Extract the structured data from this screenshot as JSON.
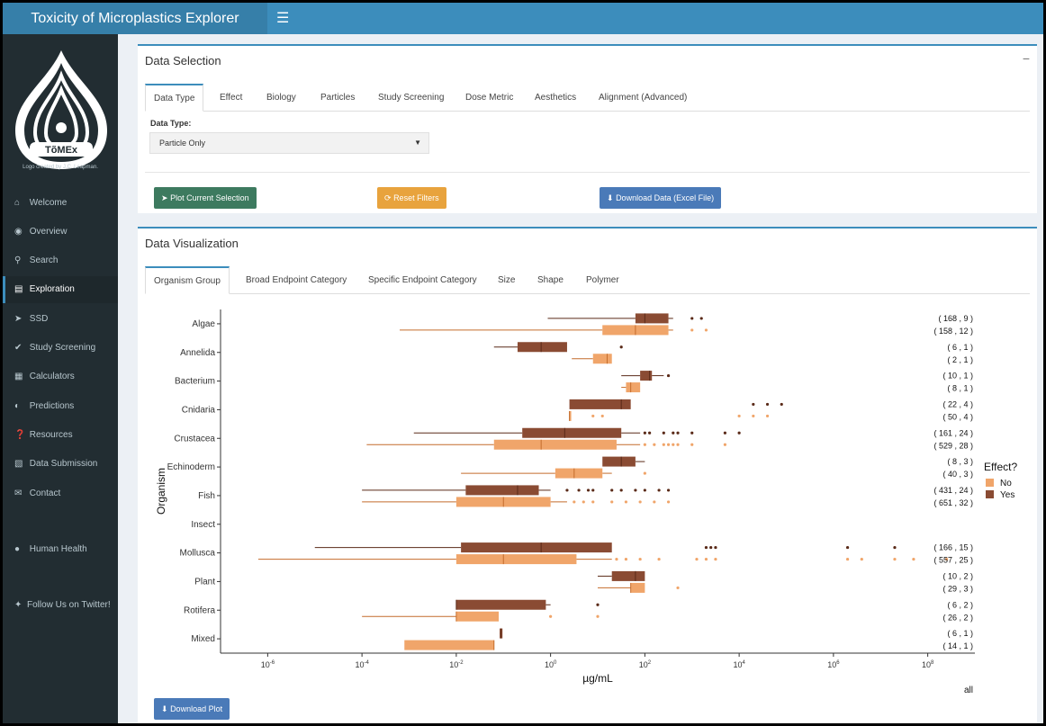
{
  "app": {
    "title": "Toxicity of Microplastics Explorer",
    "menu_icon": "hamburger-icon"
  },
  "sidebar": {
    "logo_text": "TõMEx",
    "logo_credit": "Logo created by J.C. Leapman.",
    "items": [
      {
        "label": "Welcome",
        "icon": "home-icon"
      },
      {
        "label": "Overview",
        "icon": "globe-icon"
      },
      {
        "label": "Search",
        "icon": "search-icon"
      },
      {
        "label": "Exploration",
        "icon": "chart-icon",
        "active": true
      },
      {
        "label": "SSD",
        "icon": "fish-icon"
      },
      {
        "label": "Study Screening",
        "icon": "check-circle-icon"
      },
      {
        "label": "Calculators",
        "icon": "calculator-icon"
      },
      {
        "label": "Predictions",
        "icon": "brain-icon"
      },
      {
        "label": "Resources",
        "icon": "question-icon"
      },
      {
        "label": "Data Submission",
        "icon": "file-icon"
      },
      {
        "label": "Contact",
        "icon": "envelope-icon"
      },
      {
        "label": "Human Health",
        "icon": "user-icon"
      },
      {
        "label": "Follow Us on Twitter!",
        "icon": "twitter-icon"
      }
    ]
  },
  "data_selection": {
    "title": "Data Selection",
    "collapse_label": "−",
    "tabs": [
      "Data Type",
      "Effect",
      "Biology",
      "Particles",
      "Study Screening",
      "Dose Metric",
      "Aesthetics",
      "Alignment (Advanced)"
    ],
    "data_type_label": "Data Type:",
    "data_type_value": "Particle Only",
    "buttons": {
      "plot": "Plot Current Selection",
      "reset": "Reset Filters",
      "download": "Download Data (Excel File)"
    },
    "colors": {
      "plot": "#3d7a5f",
      "reset": "#e8a33d",
      "download": "#4a7ab8"
    }
  },
  "data_visualization": {
    "title": "Data Visualization",
    "tabs": [
      "Organism Group",
      "Broad Endpoint Category",
      "Specific Endpoint Category",
      "Size",
      "Shape",
      "Polymer"
    ],
    "download_plot_label": "Download Plot",
    "facet_label": "all"
  },
  "chart_data": {
    "type": "boxplot",
    "orientation": "horizontal",
    "xlabel": "µg/mL",
    "ylabel": "Organism",
    "xscale": "log10",
    "xlim": [
      1e-07,
      1000000000.0
    ],
    "x_ticks": [
      "10-6",
      "10-4",
      "10-2",
      "100",
      "102",
      "104",
      "106",
      "108"
    ],
    "legend": {
      "title": "Effect?",
      "placement": "right",
      "entries": [
        {
          "name": "No",
          "color": "#f0a56a"
        },
        {
          "name": "Yes",
          "color": "#8a4b33"
        }
      ]
    },
    "colors": {
      "No": "#f0a56a",
      "Yes": "#8a4b33",
      "No_dark": "#c46c2c",
      "Yes_dark": "#5a2a18"
    },
    "categories": [
      "Algae",
      "Annelida",
      "Bacterium",
      "Cnidaria",
      "Crustacea",
      "Echinoderm",
      "Fish",
      "Insect",
      "Mollusca",
      "Plant",
      "Rotifera",
      "Mixed"
    ],
    "groups": [
      {
        "organism": "Algae",
        "yes": {
          "wmin": -0.06,
          "q1": 1.8,
          "med": 2.0,
          "q3": 2.5,
          "wmax": 2.6,
          "out": [
            3.0,
            3.2
          ],
          "label": "( 168 , 9 )"
        },
        "no": {
          "wmin": -3.2,
          "q1": 1.1,
          "med": 1.8,
          "q3": 2.5,
          "wmax": 2.6,
          "out": [
            3.0,
            3.3
          ],
          "label": "( 158 , 12 )"
        }
      },
      {
        "organism": "Annelida",
        "yes": {
          "wmin": -1.2,
          "q1": -0.7,
          "med": -0.2,
          "q3": 0.35,
          "wmax": 0.35,
          "out": [
            1.5
          ],
          "label": "( 6 , 1 )"
        },
        "no": {
          "wmin": 0.45,
          "q1": 0.9,
          "med": 1.2,
          "q3": 1.3,
          "wmax": 1.3,
          "out": [],
          "label": "( 2 , 1 )"
        }
      },
      {
        "organism": "Bacterium",
        "yes": {
          "wmin": 1.5,
          "q1": 1.9,
          "med": 2.1,
          "q3": 2.15,
          "wmax": 2.4,
          "out": [
            2.5
          ],
          "label": "( 10 , 1 )"
        },
        "no": {
          "wmin": 1.5,
          "q1": 1.6,
          "med": 1.7,
          "q3": 1.9,
          "wmax": 1.9,
          "out": [],
          "label": "( 8 , 1 )"
        }
      },
      {
        "organism": "Cnidaria",
        "yes": {
          "wmin": 0.4,
          "q1": 0.4,
          "med": 1.5,
          "q3": 1.7,
          "wmax": 1.7,
          "out": [
            4.3,
            4.6,
            4.9
          ],
          "label": "( 22 , 4 )"
        },
        "no": {
          "wmin": 0.4,
          "q1": 0.4,
          "med": 0.4,
          "q3": 0.4,
          "wmax": 0.4,
          "out": [
            0.9,
            1.1,
            4.0,
            4.3,
            4.6
          ],
          "label": "( 50 , 4 )"
        }
      },
      {
        "organism": "Crustacea",
        "yes": {
          "wmin": -2.9,
          "q1": -0.6,
          "med": 0.3,
          "q3": 1.5,
          "wmax": 1.9,
          "out": [
            2.0,
            2.1,
            2.4,
            2.6,
            2.7,
            3.0,
            3.7,
            4.0
          ],
          "label": "( 161 , 24 )"
        },
        "no": {
          "wmin": -3.9,
          "q1": -1.2,
          "med": -0.2,
          "q3": 1.4,
          "wmax": 1.9,
          "out": [
            2.0,
            2.2,
            2.4,
            2.5,
            2.6,
            2.7,
            3.0,
            3.7
          ],
          "label": "( 529 , 28 )"
        }
      },
      {
        "organism": "Echinoderm",
        "yes": {
          "wmin": 1.1,
          "q1": 1.1,
          "med": 1.5,
          "q3": 1.8,
          "wmax": 2.0,
          "out": [],
          "label": "( 8 , 3 )"
        },
        "no": {
          "wmin": -1.9,
          "q1": 0.1,
          "med": 0.5,
          "q3": 1.1,
          "wmax": 1.3,
          "out": [
            2.0
          ],
          "label": "( 40 , 3 )"
        }
      },
      {
        "organism": "Fish",
        "yes": {
          "wmin": -4.0,
          "q1": -1.8,
          "med": -0.7,
          "q3": -0.25,
          "wmax": 0.0,
          "out": [
            0.35,
            0.6,
            0.8,
            0.9,
            1.3,
            1.5,
            1.8,
            2.0,
            2.3,
            2.5
          ],
          "label": "( 431 , 24 )"
        },
        "no": {
          "wmin": -4.0,
          "q1": -2.0,
          "med": -1.0,
          "q3": 0.0,
          "wmax": 0.35,
          "out": [
            0.5,
            0.7,
            0.9,
            1.3,
            1.6,
            1.9,
            2.2,
            2.5
          ],
          "label": "( 651 , 32 )"
        }
      },
      {
        "organism": "Insect",
        "yes": null,
        "no": null
      },
      {
        "organism": "Mollusca",
        "yes": {
          "wmin": -5.0,
          "q1": -1.9,
          "med": -0.2,
          "q3": 1.3,
          "wmax": 1.3,
          "out": [
            3.3,
            3.4,
            3.5,
            6.3,
            7.3
          ],
          "label": "( 166 , 15 )"
        },
        "no": {
          "wmin": -6.2,
          "q1": -2.0,
          "med": -1.0,
          "q3": 0.55,
          "wmax": 1.3,
          "out": [
            1.4,
            1.6,
            1.9,
            2.3,
            3.1,
            3.3,
            3.5,
            6.3,
            6.6,
            7.3,
            7.7,
            8.4
          ],
          "label": "( 557 , 25 )"
        }
      },
      {
        "organism": "Plant",
        "yes": {
          "wmin": 1.0,
          "q1": 1.3,
          "med": 1.8,
          "q3": 2.0,
          "wmax": 2.0,
          "out": [],
          "label": "( 10 , 2 )"
        },
        "no": {
          "wmin": 1.0,
          "q1": 1.7,
          "med": 1.7,
          "q3": 2.0,
          "wmax": 2.0,
          "out": [
            2.7
          ],
          "label": "( 29 , 3 )"
        }
      },
      {
        "organism": "Rotifera",
        "yes": {
          "wmin": -2.0,
          "q1": -2.0,
          "med": -2.0,
          "q3": -0.1,
          "wmax": 0.0,
          "out": [
            1.0
          ],
          "label": "( 6 , 2 )"
        },
        "no": {
          "wmin": -4.0,
          "q1": -2.0,
          "med": -2.0,
          "q3": -1.1,
          "wmax": -1.1,
          "out": [
            0.0,
            1.0
          ],
          "label": "( 26 , 2 )"
        }
      },
      {
        "organism": "Mixed",
        "yes": {
          "wmin": -1.05,
          "q1": -1.08,
          "med": -1.05,
          "q3": -1.02,
          "wmax": -1.02,
          "out": [],
          "label": "( 6 , 1 )"
        },
        "no": {
          "wmin": -3.1,
          "q1": -3.1,
          "med": -1.2,
          "q3": -1.2,
          "wmax": -1.2,
          "out": [],
          "label": "( 14 , 1 )"
        }
      }
    ]
  }
}
